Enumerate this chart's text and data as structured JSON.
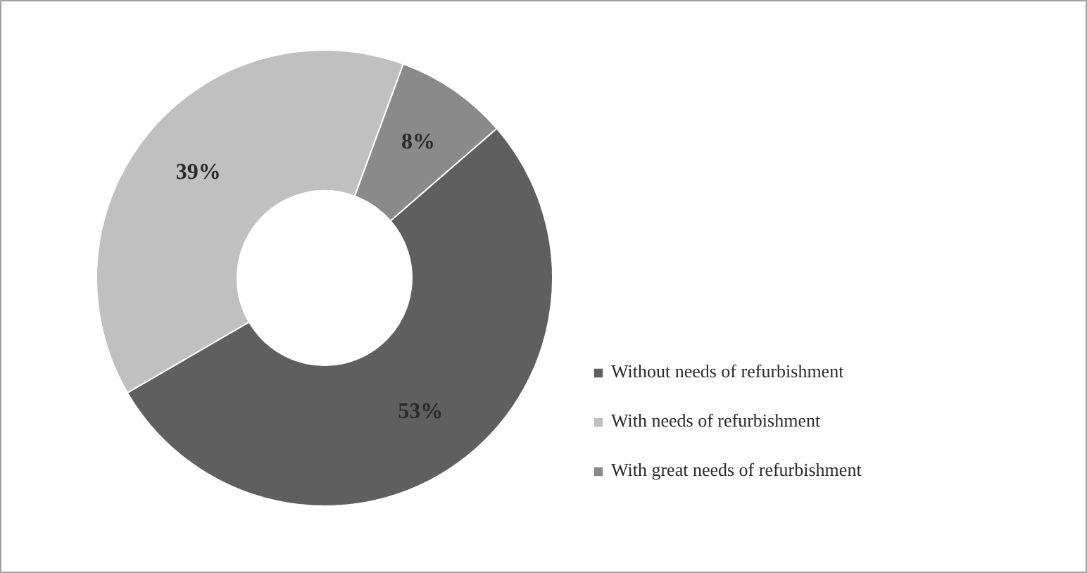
{
  "chart_data": {
    "type": "donut",
    "categories": [
      "Without needs of refurbishment",
      "With needs of refurbishment",
      "With great needs of refurbishment"
    ],
    "values": [
      53,
      39,
      8
    ],
    "colors": [
      "#5f5f5f",
      "#c0c0c0",
      "#8a8a8a"
    ],
    "value_labels": [
      "53%",
      "39%",
      "8%"
    ],
    "legend": "right"
  }
}
